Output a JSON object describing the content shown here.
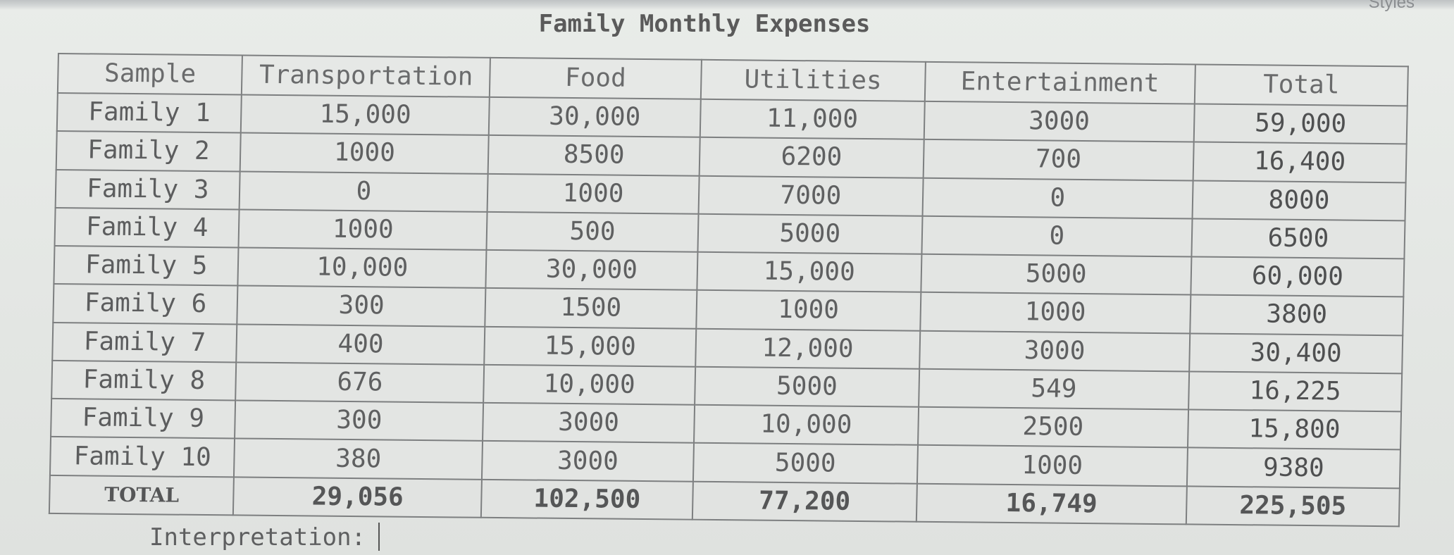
{
  "toolbar": {
    "styles_label": "Styles"
  },
  "document": {
    "title": "Family Monthly Expenses",
    "interpretation_label": "Interpretation:"
  },
  "table": {
    "headers": [
      "Sample",
      "Transportation",
      "Food",
      "Utilities",
      "Entertainment",
      "Total"
    ],
    "rows": [
      [
        "Family 1",
        "15,000",
        "30,000",
        "11,000",
        "3000",
        "59,000"
      ],
      [
        "Family 2",
        "1000",
        "8500",
        "6200",
        "700",
        "16,400"
      ],
      [
        "Family 3",
        "0",
        "1000",
        "7000",
        "0",
        "8000"
      ],
      [
        "Family 4",
        "1000",
        "500",
        "5000",
        "0",
        "6500"
      ],
      [
        "Family 5",
        "10,000",
        "30,000",
        "15,000",
        "5000",
        "60,000"
      ],
      [
        "Family 6",
        "300",
        "1500",
        "1000",
        "1000",
        "3800"
      ],
      [
        "Family 7",
        "400",
        "15,000",
        "12,000",
        "3000",
        "30,400"
      ],
      [
        "Family 8",
        "676",
        "10,000",
        "5000",
        "549",
        "16,225"
      ],
      [
        "Family 9",
        "300",
        "3000",
        "10,000",
        "2500",
        "15,800"
      ],
      [
        "Family 10",
        "380",
        "3000",
        "5000",
        "1000",
        "9380"
      ]
    ],
    "total_row": [
      "TOTAL",
      "29,056",
      "102,500",
      "77,200",
      "16,749",
      "225,505"
    ]
  }
}
